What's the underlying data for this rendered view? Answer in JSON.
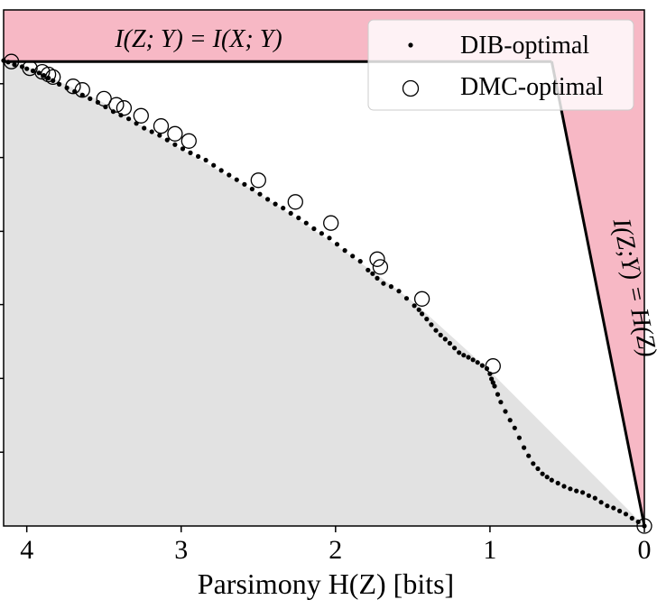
{
  "chart_data": {
    "type": "scatter",
    "title": "",
    "xlabel": "Parsimony H(Z) [bits]",
    "ylabel": "",
    "x_reversed": true,
    "xlim": [
      4.15,
      0
    ],
    "ylim": [
      0,
      1.0
    ],
    "x_ticks": [
      4,
      3,
      2,
      1,
      0
    ],
    "x_tick_labels": [
      "4",
      "3",
      "2",
      "1",
      "0"
    ],
    "y_ticks": [
      0.143,
      0.286,
      0.429,
      0.571,
      0.714,
      0.857
    ],
    "y_tick_labels": [],
    "grid": false,
    "legend_position": "top-right",
    "legend": [
      {
        "label": "DIB-optimal",
        "marker": "dot"
      },
      {
        "label": "DMC-optimal",
        "marker": "open-circle"
      }
    ],
    "region_labels": {
      "top": "I(Z; Y) = I(X; Y)",
      "right": "I(Z;Y) = H(Z)"
    },
    "colors": {
      "forbidden_region": "#f7b8c5",
      "achievable_region": "#e2e2e2",
      "marker": "#000000"
    },
    "bounds": {
      "max_info": 0.9,
      "corner_x": 0.6
    },
    "frontier_hull": [
      [
        4.15,
        0.905
      ],
      [
        3.95,
        0.885
      ],
      [
        3.5,
        0.82
      ],
      [
        3.0,
        0.73
      ],
      [
        2.5,
        0.645
      ],
      [
        2.05,
        0.555
      ],
      [
        1.7,
        0.48
      ],
      [
        1.48,
        0.43
      ],
      [
        1.0,
        0.3
      ],
      [
        0.0,
        0.0
      ]
    ],
    "series": [
      {
        "name": "DIB-optimal",
        "marker": "dot",
        "x": [
          4.15,
          4.12,
          4.08,
          4.03,
          4.0,
          3.96,
          3.92,
          3.89,
          3.86,
          3.83,
          3.79,
          3.74,
          3.69,
          3.64,
          3.59,
          3.54,
          3.49,
          3.44,
          3.39,
          3.34,
          3.29,
          3.24,
          3.19,
          3.14,
          3.09,
          3.04,
          2.99,
          2.94,
          2.89,
          2.84,
          2.79,
          2.74,
          2.69,
          2.64,
          2.59,
          2.54,
          2.49,
          2.44,
          2.39,
          2.34,
          2.29,
          2.24,
          2.19,
          2.14,
          2.09,
          2.04,
          1.99,
          1.94,
          1.89,
          1.84,
          1.79,
          1.76,
          1.73,
          1.69,
          1.64,
          1.59,
          1.54,
          1.49,
          1.46,
          1.44,
          1.41,
          1.38,
          1.35,
          1.32,
          1.29,
          1.26,
          1.23,
          1.2,
          1.17,
          1.14,
          1.11,
          1.08,
          1.05,
          1.02,
          1.0,
          0.99,
          0.98,
          0.97,
          0.95,
          0.93,
          0.9,
          0.87,
          0.84,
          0.81,
          0.78,
          0.75,
          0.72,
          0.69,
          0.66,
          0.63,
          0.6,
          0.56,
          0.52,
          0.48,
          0.44,
          0.4,
          0.36,
          0.32,
          0.28,
          0.24,
          0.2,
          0.16,
          0.12,
          0.08,
          0.04,
          0.0
        ],
        "y": [
          0.902,
          0.899,
          0.894,
          0.89,
          0.886,
          0.882,
          0.878,
          0.873,
          0.868,
          0.863,
          0.856,
          0.849,
          0.842,
          0.835,
          0.828,
          0.821,
          0.812,
          0.803,
          0.796,
          0.789,
          0.78,
          0.771,
          0.764,
          0.757,
          0.748,
          0.739,
          0.731,
          0.723,
          0.716,
          0.709,
          0.699,
          0.689,
          0.68,
          0.671,
          0.662,
          0.653,
          0.643,
          0.633,
          0.624,
          0.616,
          0.606,
          0.597,
          0.587,
          0.576,
          0.567,
          0.558,
          0.546,
          0.534,
          0.523,
          0.513,
          0.496,
          0.489,
          0.48,
          0.47,
          0.464,
          0.455,
          0.441,
          0.427,
          0.419,
          0.411,
          0.401,
          0.39,
          0.379,
          0.37,
          0.362,
          0.354,
          0.345,
          0.336,
          0.331,
          0.327,
          0.322,
          0.317,
          0.311,
          0.305,
          0.295,
          0.285,
          0.278,
          0.271,
          0.255,
          0.24,
          0.222,
          0.205,
          0.19,
          0.171,
          0.152,
          0.136,
          0.121,
          0.111,
          0.101,
          0.095,
          0.089,
          0.083,
          0.077,
          0.072,
          0.068,
          0.065,
          0.059,
          0.054,
          0.046,
          0.039,
          0.035,
          0.029,
          0.023,
          0.015,
          0.008,
          0.0
        ]
      },
      {
        "name": "DMC-optimal",
        "marker": "open-circle",
        "x": [
          4.1,
          3.98,
          3.9,
          3.86,
          3.83,
          3.7,
          3.64,
          3.5,
          3.42,
          3.37,
          3.26,
          3.13,
          3.04,
          2.95,
          2.5,
          2.26,
          2.03,
          1.73,
          1.71,
          1.44,
          0.98,
          0.0
        ],
        "y": [
          0.9,
          0.887,
          0.88,
          0.875,
          0.87,
          0.852,
          0.845,
          0.828,
          0.816,
          0.81,
          0.795,
          0.775,
          0.76,
          0.746,
          0.67,
          0.628,
          0.587,
          0.517,
          0.502,
          0.44,
          0.31,
          0.0
        ]
      }
    ]
  }
}
